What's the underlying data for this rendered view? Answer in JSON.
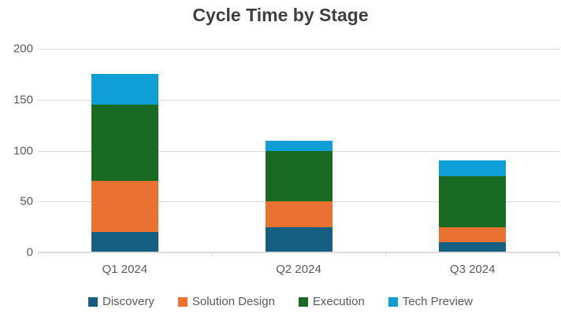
{
  "chart_data": {
    "type": "bar",
    "stacked": true,
    "title": "Cycle Time by Stage",
    "categories": [
      "Q1 2024",
      "Q2 2024",
      "Q3 2024"
    ],
    "series": [
      {
        "name": "Discovery",
        "color": "#156082",
        "values": [
          20,
          25,
          10
        ]
      },
      {
        "name": "Solution Design",
        "color": "#E97132",
        "values": [
          50,
          25,
          15
        ]
      },
      {
        "name": "Execution",
        "color": "#196B24",
        "values": [
          75,
          50,
          50
        ]
      },
      {
        "name": "Tech Preview",
        "color": "#0F9ED5",
        "values": [
          30,
          10,
          15
        ]
      }
    ],
    "totals": [
      175,
      110,
      90
    ],
    "xlabel": "",
    "ylabel": "",
    "ylim": [
      0,
      200
    ],
    "yticks": [
      0,
      50,
      100,
      150,
      200
    ],
    "grid": true,
    "legend_position": "bottom"
  },
  "style": {
    "title_color": "#3F3F3F",
    "axis_text_color": "#595959",
    "gridline_color": "#D9D9D9",
    "background": "#FFFFFF"
  }
}
